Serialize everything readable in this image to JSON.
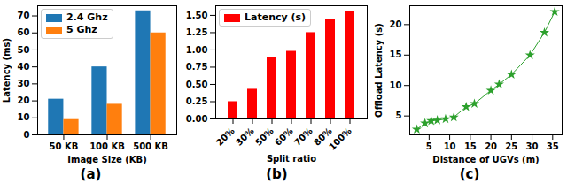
{
  "chart_data": [
    {
      "type": "bar",
      "caption": "(a)",
      "xlabel": "Image Size (KB)",
      "ylabel": "Latency (ms)",
      "categories": [
        "50 KB",
        "100 KB",
        "500 KB"
      ],
      "series": [
        {
          "name": "2.4 Ghz",
          "color": "#1f77b4",
          "values": [
            21,
            40,
            73
          ]
        },
        {
          "name": "5 Ghz",
          "color": "#ff7f0e",
          "values": [
            9,
            18,
            60
          ]
        }
      ],
      "ylim": [
        0,
        76
      ],
      "yticks": [
        0,
        10,
        20,
        30,
        40,
        50,
        60,
        70
      ],
      "grid": false,
      "legend": "upper left"
    },
    {
      "type": "bar",
      "caption": "(b)",
      "xlabel": "Split ratio",
      "categories": [
        "20%",
        "30%",
        "50%",
        "60%",
        "70%",
        "80%",
        "100%"
      ],
      "series": [
        {
          "name": "Latency (s)",
          "color": "#ff0000",
          "values": [
            0.25,
            0.43,
            0.89,
            0.98,
            1.25,
            1.44,
            1.56
          ]
        }
      ],
      "ylim": [
        0,
        1.64
      ],
      "yticks": [
        {
          "value": 0,
          "label": "0.00"
        },
        0.25,
        {
          "value": 0.5,
          "label": "0.50"
        },
        0.75,
        {
          "value": 1,
          "label": "1.00"
        },
        1.25,
        {
          "value": 1.5,
          "label": "1.50"
        }
      ],
      "grid": false,
      "legend": "upper left"
    },
    {
      "type": "line",
      "caption": "(c)",
      "xlabel": "Distance of UGVs (m)",
      "ylabel": "Offload Latency (s)",
      "x": [
        2,
        4,
        5.5,
        7,
        9,
        11,
        14,
        16,
        20,
        22,
        25,
        29.5,
        33,
        35.5
      ],
      "values": [
        2.8,
        3.8,
        4.2,
        4.3,
        4.5,
        4.8,
        6.5,
        7,
        9.2,
        10.2,
        11.8,
        15,
        18.7,
        22.1
      ],
      "color": "#2ca02c",
      "marker": "star",
      "xlim": [
        0.3,
        37.3
      ],
      "xticks": [
        5,
        10,
        15,
        20,
        25,
        30,
        35
      ],
      "ylim": [
        1.9,
        23.1
      ],
      "yticks": [
        5,
        10,
        15,
        20
      ],
      "grid": false
    }
  ]
}
